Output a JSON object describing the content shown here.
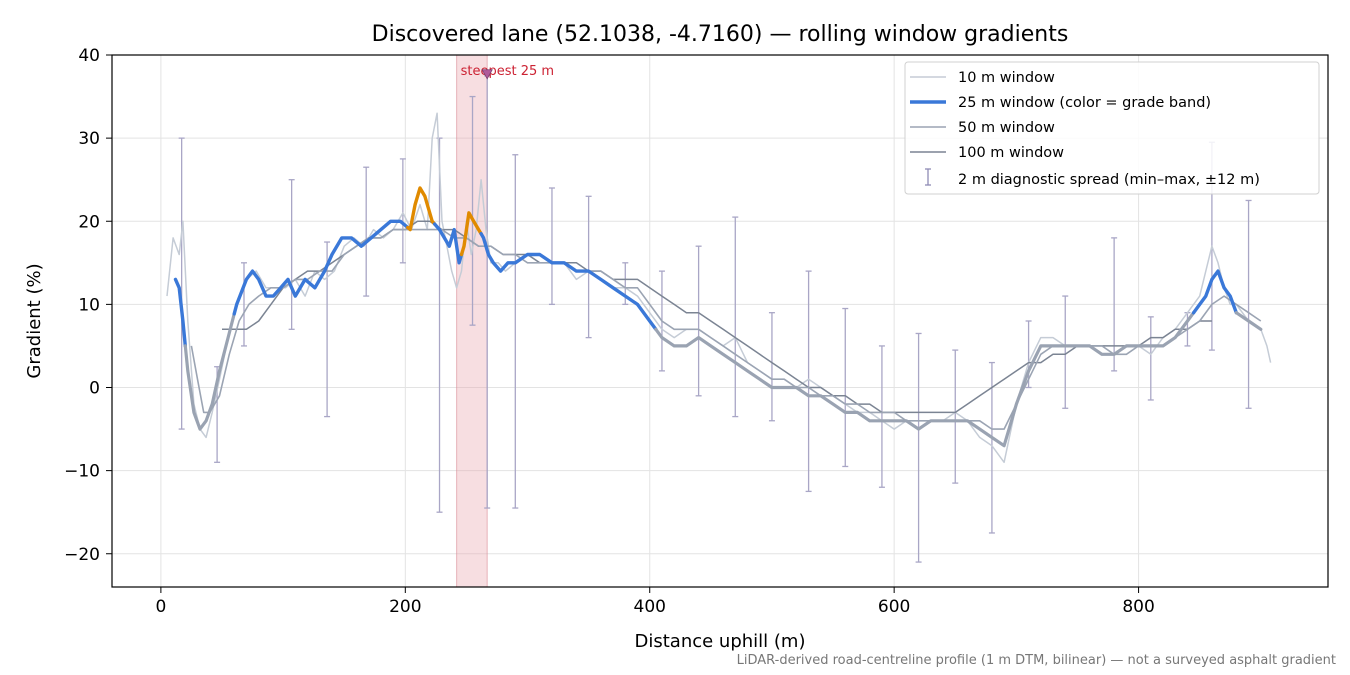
{
  "chart_data": {
    "type": "line",
    "title": "Discovered lane (52.1038, -4.7160) — rolling window gradients",
    "xlabel": "Distance uphill (m)",
    "ylabel": "Gradient (%)",
    "xlim": [
      -40,
      955
    ],
    "ylim": [
      -24,
      40
    ],
    "x_ticks": [
      0,
      200,
      400,
      600,
      800
    ],
    "y_ticks": [
      -20,
      -10,
      0,
      10,
      20,
      30,
      40
    ],
    "x_tick_labels": [
      "0",
      "200",
      "400",
      "600",
      "800"
    ],
    "y_tick_labels": [
      "−20",
      "−10",
      "0",
      "10",
      "20",
      "30",
      "40"
    ],
    "grid": true,
    "legend_position": "top-right",
    "footnote": "LiDAR-derived road-centreline profile (1 m DTM, bilinear) — not a surveyed asphalt gradient",
    "highlight": {
      "x_start": 242,
      "x_end": 267,
      "label": "steepest 25 m",
      "marker_x": 267,
      "marker_y": 37.5,
      "color": "#e8a0a8"
    },
    "colors": {
      "w10": "#c5ccd6",
      "w25_blue": "#3a78d8",
      "w25_orange": "#e08a00",
      "w25_grey": "#9aa3b2",
      "w50": "#9ba4b3",
      "w100": "#7b8493",
      "errorbar": "#a9a6c6",
      "highlight_text": "#cc2233"
    },
    "series": [
      {
        "name": "10 m window",
        "x": [
          5,
          10,
          15,
          18,
          22,
          27,
          32,
          37,
          42,
          48,
          55,
          62,
          70,
          78,
          86,
          94,
          102,
          110,
          118,
          126,
          134,
          142,
          150,
          158,
          166,
          174,
          182,
          190,
          198,
          205,
          212,
          218,
          222,
          226,
          230,
          234,
          238,
          242,
          246,
          250,
          254,
          258,
          262,
          266,
          270,
          276,
          282,
          290,
          300,
          310,
          320,
          330,
          340,
          350,
          360,
          370,
          380,
          390,
          400,
          410,
          420,
          430,
          440,
          450,
          460,
          470,
          480,
          490,
          500,
          510,
          520,
          530,
          540,
          550,
          560,
          570,
          580,
          590,
          600,
          610,
          620,
          630,
          640,
          650,
          660,
          670,
          680,
          690,
          700,
          710,
          720,
          730,
          740,
          750,
          760,
          770,
          780,
          790,
          800,
          810,
          820,
          830,
          840,
          850,
          855,
          860,
          865,
          870,
          875,
          880,
          890,
          900,
          905,
          908
        ],
        "values": [
          11,
          18,
          16,
          20,
          8,
          -2,
          -5,
          -6,
          -3,
          1,
          6,
          10,
          13,
          14,
          12,
          12,
          12,
          13,
          11,
          14,
          13,
          14,
          17,
          18,
          17,
          19,
          18,
          19,
          21,
          19,
          22,
          19,
          30,
          33,
          20,
          17,
          14,
          12,
          14,
          20,
          16,
          19,
          25,
          19,
          15,
          15,
          14,
          15,
          16,
          15,
          15,
          15,
          13,
          14,
          13,
          12,
          12,
          11,
          9,
          7,
          6,
          7,
          7,
          6,
          5,
          6,
          3,
          2,
          1,
          1,
          0,
          1,
          0,
          -1,
          -2,
          -3,
          -3,
          -4,
          -5,
          -4,
          -5,
          -4,
          -4,
          -3,
          -4,
          -6,
          -7,
          -9,
          -2,
          3,
          6,
          6,
          5,
          5,
          5,
          4,
          4,
          5,
          5,
          4,
          6,
          7,
          9,
          11,
          14,
          17,
          15,
          12,
          10,
          10,
          8,
          7,
          5,
          3
        ]
      },
      {
        "name": "25 m window (color = grade band)",
        "x": [
          12,
          15,
          18,
          22,
          27,
          32,
          37,
          42,
          48,
          55,
          62,
          70,
          75,
          80,
          86,
          92,
          98,
          104,
          110,
          118,
          126,
          134,
          140,
          148,
          156,
          164,
          172,
          180,
          188,
          196,
          204,
          208,
          212,
          216,
          222,
          228,
          232,
          236,
          240,
          244,
          248,
          252,
          256,
          260,
          264,
          268,
          272,
          278,
          284,
          290,
          300,
          310,
          320,
          330,
          340,
          350,
          360,
          370,
          380,
          390,
          400,
          410,
          420,
          430,
          440,
          450,
          460,
          470,
          480,
          490,
          500,
          510,
          520,
          530,
          540,
          550,
          560,
          570,
          580,
          590,
          600,
          610,
          620,
          630,
          640,
          650,
          660,
          670,
          680,
          690,
          700,
          710,
          720,
          730,
          740,
          750,
          760,
          770,
          780,
          790,
          800,
          810,
          820,
          830,
          840,
          850,
          855,
          860,
          865,
          870,
          875,
          880,
          890,
          900
        ],
        "values": [
          13,
          12,
          8,
          2,
          -3,
          -5,
          -4,
          -2,
          2,
          6,
          10,
          13,
          14,
          13,
          11,
          11,
          12,
          13,
          11,
          13,
          12,
          14,
          16,
          18,
          18,
          17,
          18,
          19,
          20,
          20,
          19,
          22,
          24,
          23,
          20,
          19,
          18,
          17,
          19,
          15,
          17,
          21,
          20,
          19,
          18,
          16,
          15,
          14,
          15,
          15,
          16,
          16,
          15,
          15,
          14,
          14,
          13,
          12,
          11,
          10,
          8,
          6,
          5,
          5,
          6,
          5,
          4,
          3,
          2,
          1,
          0,
          0,
          0,
          -1,
          -1,
          -2,
          -3,
          -3,
          -4,
          -4,
          -4,
          -4,
          -5,
          -4,
          -4,
          -4,
          -4,
          -5,
          -6,
          -7,
          -2,
          2,
          5,
          5,
          5,
          5,
          5,
          4,
          4,
          5,
          5,
          5,
          5,
          6,
          8,
          10,
          11,
          13,
          14,
          12,
          11,
          9,
          8,
          7
        ],
        "segments": [
          {
            "band": "blue",
            "x_start": 12,
            "x_end": 20
          },
          {
            "band": "grey",
            "x_start": 20,
            "x_end": 60
          },
          {
            "band": "blue",
            "x_start": 60,
            "x_end": 202
          },
          {
            "band": "orange",
            "x_start": 202,
            "x_end": 224
          },
          {
            "band": "blue",
            "x_start": 224,
            "x_end": 246
          },
          {
            "band": "orange",
            "x_start": 246,
            "x_end": 262
          },
          {
            "band": "blue",
            "x_start": 262,
            "x_end": 405
          },
          {
            "band": "grey",
            "x_start": 405,
            "x_end": 845
          },
          {
            "band": "blue",
            "x_start": 845,
            "x_end": 880
          },
          {
            "band": "grey",
            "x_start": 880,
            "x_end": 900
          }
        ]
      },
      {
        "name": "50 m window",
        "x": [
          25,
          30,
          35,
          40,
          48,
          56,
          64,
          72,
          80,
          90,
          100,
          110,
          120,
          130,
          140,
          150,
          160,
          170,
          180,
          190,
          200,
          210,
          220,
          230,
          240,
          250,
          260,
          270,
          280,
          290,
          300,
          310,
          320,
          330,
          340,
          350,
          360,
          370,
          380,
          390,
          400,
          410,
          420,
          430,
          440,
          450,
          460,
          470,
          480,
          490,
          500,
          510,
          520,
          530,
          540,
          550,
          560,
          570,
          580,
          590,
          600,
          610,
          620,
          630,
          640,
          650,
          660,
          670,
          680,
          690,
          700,
          710,
          720,
          730,
          740,
          750,
          760,
          770,
          780,
          790,
          800,
          810,
          820,
          830,
          840,
          850,
          860,
          870,
          880,
          890,
          900
        ],
        "values": [
          5,
          1,
          -3,
          -3,
          -1,
          4,
          8,
          10,
          11,
          12,
          12,
          13,
          13,
          14,
          14,
          16,
          17,
          18,
          18,
          19,
          19,
          19,
          19,
          19,
          18,
          18,
          17,
          17,
          16,
          16,
          15,
          15,
          15,
          15,
          14,
          14,
          14,
          13,
          12,
          12,
          10,
          8,
          7,
          7,
          7,
          6,
          5,
          4,
          3,
          2,
          1,
          1,
          0,
          0,
          -1,
          -1,
          -2,
          -2,
          -3,
          -3,
          -3,
          -4,
          -4,
          -4,
          -4,
          -4,
          -4,
          -4,
          -5,
          -5,
          -2,
          1,
          4,
          5,
          5,
          5,
          5,
          5,
          4,
          4,
          5,
          5,
          5,
          6,
          7,
          8,
          10,
          11,
          10,
          9,
          8
        ]
      },
      {
        "name": "100 m window",
        "x": [
          50,
          60,
          70,
          80,
          90,
          100,
          110,
          120,
          130,
          140,
          150,
          160,
          170,
          180,
          190,
          200,
          210,
          220,
          230,
          240,
          250,
          260,
          270,
          280,
          290,
          300,
          310,
          320,
          330,
          340,
          350,
          360,
          370,
          380,
          390,
          400,
          410,
          420,
          430,
          440,
          450,
          460,
          470,
          480,
          490,
          500,
          510,
          520,
          530,
          540,
          550,
          560,
          570,
          580,
          590,
          600,
          610,
          620,
          630,
          640,
          650,
          660,
          670,
          680,
          690,
          700,
          710,
          720,
          730,
          740,
          750,
          760,
          770,
          780,
          790,
          800,
          810,
          820,
          830,
          840,
          850,
          860
        ],
        "values": [
          7,
          7,
          7,
          8,
          10,
          12,
          13,
          14,
          14,
          15,
          16,
          17,
          18,
          18,
          19,
          19,
          20,
          20,
          19,
          19,
          18,
          17,
          17,
          16,
          16,
          16,
          15,
          15,
          15,
          15,
          14,
          14,
          13,
          13,
          13,
          12,
          11,
          10,
          9,
          9,
          8,
          7,
          6,
          5,
          4,
          3,
          2,
          1,
          0,
          0,
          -1,
          -1,
          -2,
          -2,
          -3,
          -3,
          -3,
          -3,
          -3,
          -3,
          -3,
          -2,
          -1,
          0,
          1,
          2,
          3,
          3,
          4,
          4,
          5,
          5,
          5,
          5,
          5,
          5,
          6,
          6,
          7,
          7,
          8,
          8
        ]
      }
    ],
    "errorbars": {
      "name": "2 m diagnostic spread (min–max, ±12 m)",
      "x": [
        17,
        46,
        68,
        107,
        136,
        168,
        198,
        228,
        255,
        267,
        290,
        320,
        350,
        380,
        410,
        440,
        470,
        500,
        530,
        560,
        590,
        620,
        650,
        680,
        710,
        740,
        780,
        810,
        840,
        860,
        890
      ],
      "low": [
        -5,
        -9,
        5,
        7,
        -3.5,
        11,
        15,
        -15,
        7.5,
        -14.5,
        -14.5,
        10,
        6,
        10,
        2,
        -1,
        -3.5,
        -4,
        -12.5,
        -9.5,
        -12,
        -21,
        -11.5,
        -17.5,
        0,
        -2.5,
        2,
        -1.5,
        5,
        4.5,
        -2.5
      ],
      "high": [
        30,
        2.5,
        15,
        25,
        17.5,
        26.5,
        27.5,
        30,
        35,
        37.5,
        28,
        24,
        23,
        15,
        14,
        17,
        20.5,
        9,
        14,
        9.5,
        5,
        6.5,
        4.5,
        3,
        8,
        11,
        18,
        8.5,
        9,
        29.5,
        22.5
      ]
    }
  }
}
